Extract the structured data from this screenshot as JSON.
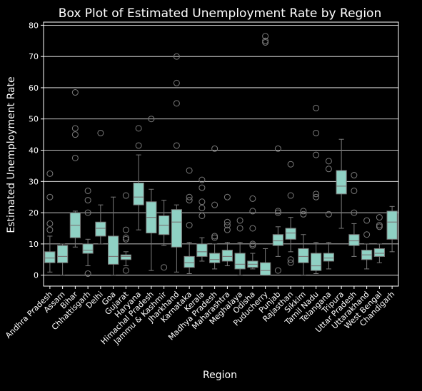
{
  "chart_data": {
    "type": "box",
    "title": "Box Plot of Estimated Unemployment Rate by Region",
    "xlabel": "Region",
    "ylabel": "Estimated Unemployment Rate",
    "ylim": [
      -3.5,
      81
    ],
    "yticks": [
      0,
      10,
      20,
      30,
      40,
      50,
      60,
      70,
      80
    ],
    "grid": "horizontal",
    "box_color": "#8fd1c4",
    "whisker_color": "#7a7a7a",
    "gridline_color": "#ffffff",
    "background": "#000000",
    "categories": [
      {
        "name": "Andhra Pradesh",
        "q1": 4.0,
        "median": 5.5,
        "q3": 7.5,
        "wlo": 1.0,
        "whi": 12.5,
        "outliers": [
          14.5,
          16.5,
          25.0,
          32.5
        ]
      },
      {
        "name": "Assam",
        "q1": 4.0,
        "median": 6.0,
        "q3": 9.5,
        "wlo": 0.0,
        "whi": 10.0,
        "outliers": []
      },
      {
        "name": "Bihar",
        "q1": 12.0,
        "median": 16.0,
        "q3": 20.0,
        "wlo": 9.0,
        "whi": 20.5,
        "outliers": [
          37.5,
          45.0,
          47.0,
          58.5
        ]
      },
      {
        "name": "Chhattisgarh",
        "q1": 7.0,
        "median": 8.0,
        "q3": 10.0,
        "wlo": 3.0,
        "whi": 11.5,
        "outliers": [
          0.5,
          20.0,
          24.0,
          27.0
        ]
      },
      {
        "name": "Delhi",
        "q1": 12.5,
        "median": 15.0,
        "q3": 17.0,
        "wlo": 10.0,
        "whi": 22.5,
        "outliers": [
          45.5
        ]
      },
      {
        "name": "Goa",
        "q1": 3.5,
        "median": 6.0,
        "q3": 12.5,
        "wlo": 0.0,
        "whi": 25.0,
        "outliers": []
      },
      {
        "name": "Gujarat",
        "q1": 5.0,
        "median": 6.0,
        "q3": 6.5,
        "wlo": 3.0,
        "whi": 7.5,
        "outliers": [
          1.5,
          11.5,
          12.0,
          14.5,
          25.5
        ]
      },
      {
        "name": "Haryana",
        "q1": 22.5,
        "median": 25.0,
        "q3": 29.5,
        "wlo": 14.5,
        "whi": 38.5,
        "outliers": [
          41.5,
          47.0
        ]
      },
      {
        "name": "Himachal Pradesh",
        "q1": 13.5,
        "median": 18.5,
        "q3": 23.5,
        "wlo": 1.5,
        "whi": 27.5,
        "outliers": [
          50.0
        ]
      },
      {
        "name": "Jammu & Kashmir",
        "q1": 13.0,
        "median": 16.0,
        "q3": 19.0,
        "wlo": 9.5,
        "whi": 24.0,
        "outliers": [
          2.5
        ]
      },
      {
        "name": "Jharkhand",
        "q1": 9.0,
        "median": 17.0,
        "q3": 21.0,
        "wlo": 1.0,
        "whi": 22.5,
        "outliers": [
          41.5,
          55.0,
          61.5,
          70.0
        ]
      },
      {
        "name": "Karnataka",
        "q1": 2.5,
        "median": 4.0,
        "q3": 6.0,
        "wlo": 0.5,
        "whi": 10.5,
        "outliers": [
          16.0,
          24.0,
          25.0,
          33.5
        ]
      },
      {
        "name": "Kerala",
        "q1": 6.0,
        "median": 7.5,
        "q3": 10.0,
        "wlo": 4.5,
        "whi": 12.0,
        "outliers": [
          19.0,
          21.5,
          23.5,
          28.0,
          30.5
        ]
      },
      {
        "name": "Madhya Pradesh",
        "q1": 4.0,
        "median": 5.0,
        "q3": 7.0,
        "wlo": 2.0,
        "whi": 10.0,
        "outliers": [
          12.0,
          12.5,
          22.5,
          40.5
        ]
      },
      {
        "name": "Maharashtra",
        "q1": 4.5,
        "median": 6.0,
        "q3": 8.0,
        "wlo": 3.0,
        "whi": 10.5,
        "outliers": [
          14.5,
          16.0,
          17.0,
          25.0
        ]
      },
      {
        "name": "Meghalaya",
        "q1": 2.0,
        "median": 3.5,
        "q3": 7.0,
        "wlo": 0.0,
        "whi": 10.5,
        "outliers": [
          15.0,
          17.5
        ]
      },
      {
        "name": "Odisha",
        "q1": 2.5,
        "median": 3.5,
        "q3": 4.5,
        "wlo": 2.0,
        "whi": 7.0,
        "outliers": [
          9.5,
          10.0,
          15.0,
          20.5,
          24.5
        ]
      },
      {
        "name": "Puducherry",
        "q1": 0.0,
        "median": 1.5,
        "q3": 4.0,
        "wlo": 0.0,
        "whi": 8.5,
        "outliers": [
          74.5,
          75.0,
          76.5
        ]
      },
      {
        "name": "Punjab",
        "q1": 9.5,
        "median": 11.0,
        "q3": 13.0,
        "wlo": 6.0,
        "whi": 15.5,
        "outliers": [
          1.5,
          20.0,
          20.5,
          40.5
        ]
      },
      {
        "name": "Rajasthan",
        "q1": 11.5,
        "median": 13.5,
        "q3": 15.0,
        "wlo": 7.5,
        "whi": 18.5,
        "outliers": [
          4.0,
          5.0,
          25.5,
          35.5
        ]
      },
      {
        "name": "Sikkim",
        "q1": 4.0,
        "median": 6.0,
        "q3": 8.5,
        "wlo": 0.0,
        "whi": 13.0,
        "outliers": [
          19.5,
          20.5
        ]
      },
      {
        "name": "Tamil Nadu",
        "q1": 1.5,
        "median": 3.0,
        "q3": 7.0,
        "wlo": 0.5,
        "whi": 10.5,
        "outliers": [
          25.0,
          26.0,
          38.5,
          45.5,
          53.5
        ]
      },
      {
        "name": "Telangana",
        "q1": 4.5,
        "median": 5.5,
        "q3": 7.0,
        "wlo": 2.0,
        "whi": 10.5,
        "outliers": [
          19.5,
          34.0,
          36.5
        ]
      },
      {
        "name": "Tripura",
        "q1": 26.0,
        "median": 28.5,
        "q3": 33.5,
        "wlo": 15.0,
        "whi": 43.5,
        "outliers": []
      },
      {
        "name": "Uttar Pradesh",
        "q1": 9.5,
        "median": 11.0,
        "q3": 13.0,
        "wlo": 6.0,
        "whi": 16.5,
        "outliers": [
          20.0,
          27.0,
          32.0
        ]
      },
      {
        "name": "Uttarakhand",
        "q1": 5.0,
        "median": 6.5,
        "q3": 8.0,
        "wlo": 2.0,
        "whi": 10.0,
        "outliers": [
          13.0,
          17.5
        ]
      },
      {
        "name": "West Bengal",
        "q1": 6.0,
        "median": 7.0,
        "q3": 8.5,
        "wlo": 4.0,
        "whi": 10.0,
        "outliers": [
          15.5,
          16.0,
          18.5
        ]
      },
      {
        "name": "Chandigarh",
        "q1": 11.5,
        "median": 17.0,
        "q3": 20.5,
        "wlo": 7.5,
        "whi": 22.0,
        "outliers": []
      }
    ]
  }
}
